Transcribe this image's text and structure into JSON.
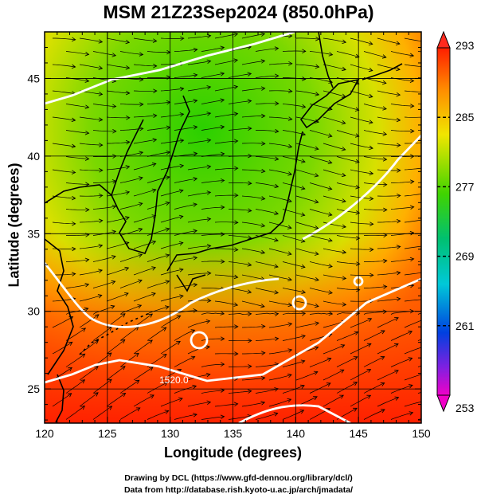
{
  "title": "MSM 21Z23Sep2024 (850.0hPa)",
  "xlabel": "Longitude (degrees)",
  "ylabel": "Latitude  (degrees)",
  "x_ticks": [
    "120",
    "125",
    "130",
    "135",
    "140",
    "145",
    "150"
  ],
  "y_ticks": [
    "25",
    "30",
    "35",
    "40",
    "45"
  ],
  "colorbar_ticks": [
    "293",
    "285",
    "277",
    "269",
    "261",
    "253"
  ],
  "contour_label": "1520.0",
  "credit_line1": "Drawing by DCL (https://www.gfd-dennou.org/library/dcl/)",
  "credit_line2": "Data from http://database.rish.kyoto-u.ac.jp/arch/jmadata/",
  "map_extent": {
    "lon": [
      120,
      150
    ],
    "lat": [
      22.8,
      48
    ]
  },
  "colorbar_range": [
    253,
    293
  ],
  "colors": {
    "warm": "#ff3a00",
    "orange": "#ff9a00",
    "yellow": "#e8e600",
    "green": "#2ad400",
    "cyan": "#00c8d8",
    "blue": "#0038e0",
    "magenta": "#e000d0"
  }
}
